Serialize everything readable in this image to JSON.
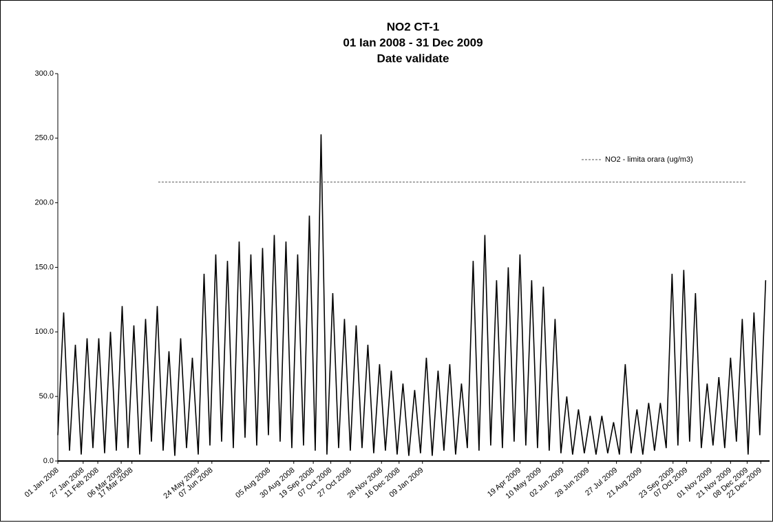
{
  "chart_data": {
    "type": "line",
    "title": "NO2 CT-1",
    "subtitle": "01 Ian 2008 - 31 Dec 2009",
    "subtitle2": "Date validate",
    "x": [
      "01 Jan 2008",
      "07 Jan 2008",
      "13 Jan 2008",
      "19 Jan 2008",
      "25 Jan 2008",
      "31 Jan 2008",
      "06 Feb 2008",
      "12 Feb 2008",
      "18 Feb 2008",
      "24 Feb 2008",
      "01 Mar 2008",
      "07 Mar 2008",
      "13 Mar 2008",
      "19 Mar 2008",
      "25 Mar 2008",
      "31 Mar 2008",
      "06 Apr 2008",
      "12 Apr 2008",
      "18 Apr 2008",
      "24 Apr 2008",
      "30 Apr 2008",
      "06 May 2008",
      "12 May 2008",
      "18 May 2008",
      "24 May 2008",
      "30 May 2008",
      "05 Jun 2008",
      "11 Jun 2008",
      "17 Jun 2008",
      "23 Jun 2008",
      "29 Jun 2008",
      "05 Jul 2008",
      "11 Jul 2008",
      "17 Jul 2008",
      "23 Jul 2008",
      "29 Jul 2008",
      "04 Aug 2008",
      "10 Aug 2008",
      "16 Aug 2008",
      "22 Aug 2008",
      "28 Aug 2008",
      "03 Sep 2008",
      "09 Sep 2008",
      "15 Sep 2008",
      "21 Sep 2008",
      "27 Sep 2008",
      "03 Oct 2008",
      "09 Oct 2008",
      "15 Oct 2008",
      "21 Oct 2008",
      "27 Oct 2008",
      "02 Nov 2008",
      "08 Nov 2008",
      "14 Nov 2008",
      "20 Nov 2008",
      "26 Nov 2008",
      "02 Dec 2008",
      "08 Dec 2008",
      "14 Dec 2008",
      "20 Dec 2008",
      "26 Dec 2008",
      "01 Jan 2009",
      "07 Jan 2009",
      "13 Jan 2009",
      "19 Jan 2009",
      "25 Jan 2009",
      "31 Jan 2009",
      "06 Feb 2009",
      "12 Feb 2009",
      "18 Feb 2009",
      "24 Feb 2009",
      "02 Mar 2009",
      "08 Mar 2009",
      "14 Mar 2009",
      "20 Mar 2009",
      "26 Mar 2009",
      "01 Apr 2009",
      "07 Apr 2009",
      "13 Apr 2009",
      "19 Apr 2009",
      "25 Apr 2009",
      "01 May 2009",
      "07 May 2009",
      "13 May 2009",
      "19 May 2009",
      "25 May 2009",
      "31 May 2009",
      "06 Jun 2009",
      "12 Jun 2009",
      "18 Jun 2009",
      "24 Jun 2009",
      "30 Jun 2009",
      "06 Jul 2009",
      "12 Jul 2009",
      "18 Jul 2009",
      "24 Jul 2009",
      "30 Jul 2009",
      "05 Aug 2009",
      "11 Aug 2009",
      "17 Aug 2009",
      "23 Aug 2009",
      "29 Aug 2009",
      "04 Sep 2009",
      "10 Sep 2009",
      "16 Sep 2009",
      "22 Sep 2009",
      "28 Sep 2009",
      "04 Oct 2009",
      "10 Oct 2009",
      "16 Oct 2009",
      "22 Oct 2009",
      "28 Oct 2009",
      "03 Nov 2009",
      "09 Nov 2009",
      "15 Nov 2009",
      "21 Nov 2009",
      "27 Nov 2009",
      "03 Dec 2009",
      "09 Dec 2009",
      "15 Dec 2009",
      "21 Dec 2009",
      "27 Dec 2009"
    ],
    "series": [
      {
        "color": "#000000",
        "values": [
          20,
          115,
          8,
          90,
          5,
          95,
          10,
          95,
          6,
          100,
          8,
          120,
          10,
          105,
          5,
          110,
          15,
          120,
          8,
          85,
          4,
          95,
          10,
          80,
          5,
          145,
          12,
          160,
          15,
          155,
          10,
          170,
          18,
          160,
          12,
          165,
          20,
          175,
          15,
          170,
          10,
          160,
          12,
          190,
          8,
          253,
          5,
          130,
          10,
          110,
          8,
          105,
          10,
          90,
          6,
          75,
          8,
          70,
          5,
          60,
          4,
          55,
          6,
          80,
          4,
          70,
          8,
          75,
          5,
          60,
          10,
          155,
          8,
          175,
          12,
          140,
          10,
          150,
          15,
          160,
          12,
          140,
          10,
          135,
          8,
          110,
          6,
          50,
          5,
          40,
          6,
          35,
          5,
          35,
          6,
          30,
          5,
          75,
          6,
          40,
          5,
          45,
          8,
          45,
          10,
          145,
          12,
          148,
          15,
          130,
          10,
          60,
          12,
          65,
          10,
          80,
          15,
          110,
          5,
          115,
          20,
          140
        ]
      },
      {
        "name": "NO2 - limita orara (ug/m3)",
        "color": "#555555",
        "dashed": true,
        "x": [
          "13 Apr 2008",
          "07 Dec 2009"
        ],
        "values": [
          216,
          216
        ]
      }
    ],
    "xlim": [
      "01 Jan 2008",
      "31 Dec 2009"
    ],
    "xticks": [
      "01 Jan 2008",
      "27 Jan 2008",
      "11 Feb 2008",
      "06 Mar 2008",
      "17 Mar 2008",
      "24 May 2008",
      "07 Jun 2008",
      "05 Aug 2008",
      "30 Aug 2008",
      "19 Sep 2008",
      "07 Oct 2008",
      "27 Oct 2008",
      "28 Nov 2008",
      "16 Dec 2008",
      "09 Jan 2009",
      "19 Apr 2009",
      "10 May 2009",
      "02 Jun 2009",
      "28 Jun 2009",
      "27 Jul 2009",
      "21 Aug 2009",
      "23 Sep 2009",
      "07 Oct 2009",
      "01 Nov 2009",
      "21 Nov 2009",
      "08 Dec 2009",
      "22 Dec 2009"
    ],
    "ylim": [
      0,
      300
    ],
    "yticks": [
      {
        "value": 0,
        "label": "0.0"
      },
      {
        "value": 50,
        "label": "50.0"
      },
      {
        "value": 100,
        "label": "100.0"
      },
      {
        "value": 150,
        "label": "150.0"
      },
      {
        "value": 200,
        "label": "200.0"
      },
      {
        "value": 250,
        "label": "250.0"
      },
      {
        "value": 300,
        "label": "300.0"
      }
    ],
    "legend": "upper-right"
  }
}
